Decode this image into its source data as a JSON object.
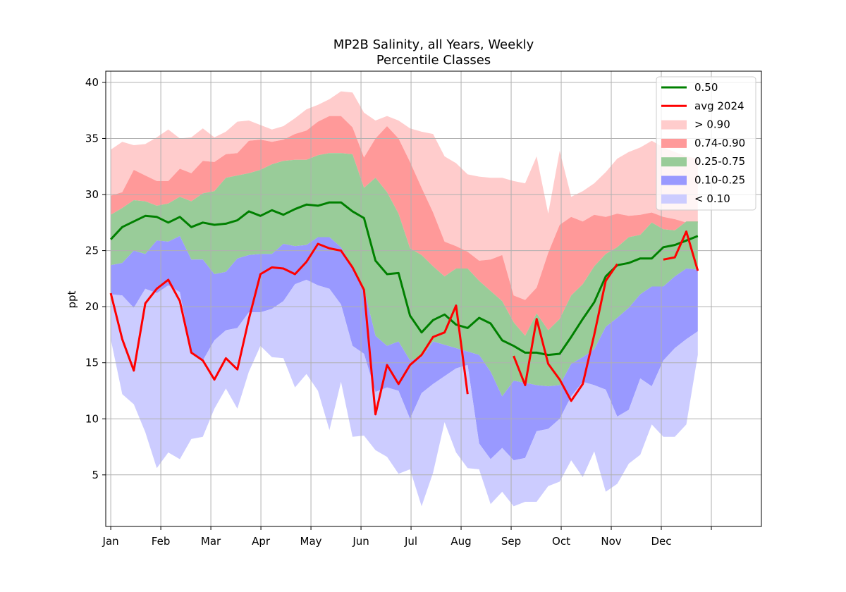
{
  "chart_data": {
    "type": "area",
    "title": "MP2B Salinity, all Years, Weekly",
    "subtitle": "Percentile Classes",
    "xlabel": "",
    "ylabel": "ppt",
    "xlim": [
      -0.1,
      13.0
    ],
    "ylim": [
      0.4,
      41.0
    ],
    "grid": true,
    "legend_position": "top-right",
    "month_ticks": [
      "Jan",
      "Feb",
      "Mar",
      "Apr",
      "May",
      "Jun",
      "Jul",
      "Aug",
      "Sep",
      "Oct",
      "Nov",
      "Dec",
      ""
    ],
    "y_ticks": [
      5,
      10,
      15,
      20,
      25,
      30,
      35,
      40
    ],
    "colors": {
      "median": "#008000",
      "avg": "#ff0000",
      "gt90": "#ffcccc",
      "p74_90": "#ff9999",
      "p25_75": "#99cc99",
      "p10_25": "#9999ff",
      "lt10": "#ccccff",
      "grid": "#b0b0b0"
    },
    "legend": [
      "0.50",
      "avg 2024",
      "> 0.90",
      "0.74-0.90",
      "0.25-0.75",
      "0.10-0.25",
      "< 0.10"
    ],
    "x": [
      0.0,
      0.23,
      0.46,
      0.69,
      0.92,
      1.15,
      1.38,
      1.61,
      1.84,
      2.07,
      2.3,
      2.53,
      2.76,
      2.99,
      3.22,
      3.45,
      3.68,
      3.91,
      4.14,
      4.37,
      4.6,
      4.83,
      5.06,
      5.29,
      5.52,
      5.75,
      5.98,
      6.21,
      6.44,
      6.67,
      6.9,
      7.13,
      7.36,
      7.59,
      7.82,
      8.05,
      8.28,
      8.51,
      8.74,
      8.97,
      9.2,
      9.43,
      9.66,
      9.89,
      10.12,
      10.35,
      10.58,
      10.81,
      11.04,
      11.27,
      11.5,
      11.73
    ],
    "series": [
      {
        "name": "> 0.90",
        "min": [
          34.0,
          34.7,
          34.4,
          34.5,
          35.1,
          35.8,
          35.0,
          35.1,
          35.9,
          35.1,
          35.6,
          36.5,
          36.6,
          36.2,
          35.8,
          36.1,
          36.8,
          37.6,
          38.0,
          38.5,
          39.2,
          39.1,
          37.3,
          36.6,
          37.0,
          36.6,
          35.9,
          35.6,
          35.4,
          33.4,
          32.8,
          31.8,
          31.6,
          31.5,
          31.5,
          31.2,
          31.0,
          33.4,
          28.3,
          33.9,
          29.8,
          30.3,
          31.0,
          32.0,
          33.2,
          33.8,
          34.2,
          34.8,
          34.2,
          33.8,
          33.4,
          33.2
        ]
      },
      {
        "name": "0.74-0.90",
        "min": [
          29.9,
          30.2,
          32.2,
          31.7,
          31.2,
          31.2,
          32.3,
          31.9,
          33.0,
          32.9,
          33.6,
          33.7,
          34.8,
          34.9,
          34.7,
          34.9,
          35.4,
          35.7,
          36.5,
          37.0,
          37.0,
          36.0,
          33.3,
          35.0,
          36.1,
          35.0,
          32.9,
          30.6,
          28.4,
          25.8,
          25.4,
          24.9,
          24.1,
          24.2,
          24.6,
          21.0,
          20.6,
          21.7,
          24.8,
          27.3,
          28.0,
          27.6,
          28.2,
          28.0,
          28.3,
          28.1,
          28.2,
          28.4,
          28.0,
          27.8,
          27.5,
          27.5
        ]
      },
      {
        "name": "0.25-0.75",
        "min": [
          28.2,
          28.8,
          29.5,
          29.4,
          29.0,
          29.2,
          29.8,
          29.4,
          30.1,
          30.3,
          31.5,
          31.7,
          31.9,
          32.2,
          32.7,
          33.0,
          33.1,
          33.1,
          33.5,
          33.7,
          33.7,
          33.6,
          30.6,
          31.5,
          30.2,
          28.3,
          25.2,
          24.6,
          23.6,
          22.7,
          23.4,
          23.4,
          22.3,
          21.4,
          20.5,
          18.6,
          17.4,
          19.4,
          17.9,
          18.9,
          21.0,
          22.0,
          23.6,
          24.7,
          25.3,
          26.2,
          26.4,
          27.5,
          26.9,
          26.8,
          27.6,
          27.6
        ]
      },
      {
        "name": "0.10-0.25",
        "min": [
          23.7,
          23.9,
          25.0,
          24.7,
          25.9,
          25.8,
          26.3,
          24.2,
          24.2,
          22.9,
          23.1,
          24.3,
          24.6,
          24.7,
          24.7,
          25.6,
          25.4,
          25.5,
          26.2,
          26.2,
          25.3,
          23.6,
          21.6,
          17.4,
          16.5,
          16.9,
          15.2,
          15.5,
          16.9,
          16.6,
          16.3,
          16.0,
          15.7,
          14.2,
          12.0,
          13.4,
          13.2,
          13.0,
          12.9,
          13.0,
          14.9,
          15.5,
          16.2,
          18.2,
          19.0,
          19.9,
          21.1,
          21.8,
          21.8,
          22.7,
          23.4,
          23.3
        ]
      },
      {
        "name": "< 0.10",
        "min": [
          17.1,
          12.2,
          11.3,
          8.8,
          5.6,
          7.0,
          6.4,
          8.2,
          8.4,
          10.9,
          12.7,
          10.9,
          14.2,
          16.5,
          15.5,
          15.4,
          12.8,
          14.0,
          12.5,
          9.0,
          13.3,
          8.4,
          8.5,
          7.2,
          6.6,
          5.1,
          5.5,
          2.2,
          5.2,
          9.7,
          7.0,
          5.6,
          5.5,
          2.4,
          3.5,
          2.2,
          2.6,
          2.6,
          4.0,
          4.4,
          6.3,
          4.8,
          7.1,
          3.5,
          4.2,
          6.0,
          6.8,
          9.5,
          8.4,
          8.4,
          9.5,
          15.7
        ]
      },
      {
        "name": "< 0.10 lower",
        "min": [
          21.1,
          21.0,
          19.9,
          21.6,
          21.2,
          21.9,
          21.3,
          15.9,
          15.2,
          17.0,
          17.9,
          18.1,
          19.5,
          19.5,
          19.8,
          20.5,
          22.0,
          22.4,
          21.9,
          21.6,
          20.2,
          16.5,
          15.8,
          12.4,
          12.8,
          12.5,
          10.0,
          12.3,
          13.1,
          13.8,
          14.5,
          14.8,
          7.8,
          6.4,
          7.4,
          6.3,
          6.5,
          8.9,
          9.1,
          10.0,
          12.0,
          13.3,
          13.0,
          12.6,
          10.2,
          10.8,
          13.6,
          12.9,
          15.2,
          16.3,
          17.1,
          17.8
        ]
      },
      {
        "name": "0.50",
        "values": [
          26.0,
          27.1,
          27.6,
          28.1,
          28.0,
          27.5,
          28.0,
          27.1,
          27.5,
          27.3,
          27.4,
          27.7,
          28.5,
          28.1,
          28.6,
          28.2,
          28.7,
          29.1,
          29.0,
          29.3,
          29.3,
          28.5,
          27.9,
          24.1,
          22.9,
          23.0,
          19.2,
          17.7,
          18.8,
          19.3,
          18.4,
          18.1,
          19.0,
          18.5,
          17.0,
          16.5,
          15.9,
          15.9,
          15.7,
          15.8,
          17.3,
          18.9,
          20.4,
          22.7,
          23.7,
          23.9,
          24.3,
          24.3,
          25.3,
          25.5,
          25.9,
          26.3
        ]
      },
      {
        "name": "avg 2024",
        "values": [
          21.2,
          17.1,
          14.3,
          20.3,
          21.6,
          22.4,
          20.5,
          15.9,
          15.2,
          13.5,
          15.4,
          14.4,
          18.9,
          22.9,
          23.5,
          23.4,
          22.9,
          24.0,
          25.6,
          25.2,
          25.0,
          23.5,
          21.5,
          10.4,
          14.8,
          13.1,
          14.8,
          15.7,
          17.3,
          17.7,
          20.1,
          12.2,
          null,
          null,
          null,
          15.6,
          13.0,
          18.9,
          14.9,
          13.5,
          11.6,
          13.1,
          17.5,
          22.3,
          23.8,
          null,
          null,
          null,
          24.2,
          24.4,
          26.7,
          23.2
        ]
      }
    ]
  }
}
